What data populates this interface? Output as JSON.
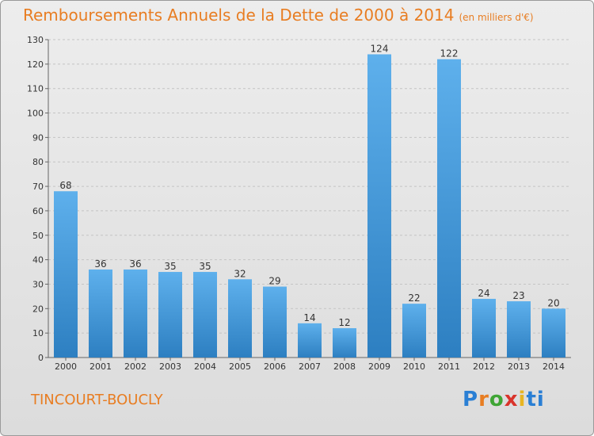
{
  "header": {
    "title": "Remboursements Annuels de la Dette de 2000 à 2014",
    "subtitle": "(en milliers d'€)"
  },
  "footer": {
    "commune": "TINCOURT-BOUCLY",
    "logo_letters": [
      "P",
      "r",
      "o",
      "x",
      "i",
      "ti"
    ]
  },
  "colors": {
    "title": "#e87d22",
    "bar_top": "#5eb0ec",
    "bar_bottom": "#2d7fc1"
  },
  "chart_data": {
    "type": "bar",
    "title": "Remboursements Annuels de la Dette de 2000 à 2014",
    "subtitle": "(en milliers d'€)",
    "categories": [
      "2000",
      "2001",
      "2002",
      "2003",
      "2004",
      "2005",
      "2006",
      "2007",
      "2008",
      "2009",
      "2010",
      "2011",
      "2012",
      "2013",
      "2014"
    ],
    "values": [
      68,
      36,
      36,
      35,
      35,
      32,
      29,
      14,
      12,
      124,
      22,
      122,
      24,
      23,
      20
    ],
    "ylim": [
      0,
      130
    ],
    "yticks": [
      0,
      10,
      20,
      30,
      40,
      50,
      60,
      70,
      80,
      90,
      100,
      110,
      120,
      130
    ],
    "grid": true
  }
}
